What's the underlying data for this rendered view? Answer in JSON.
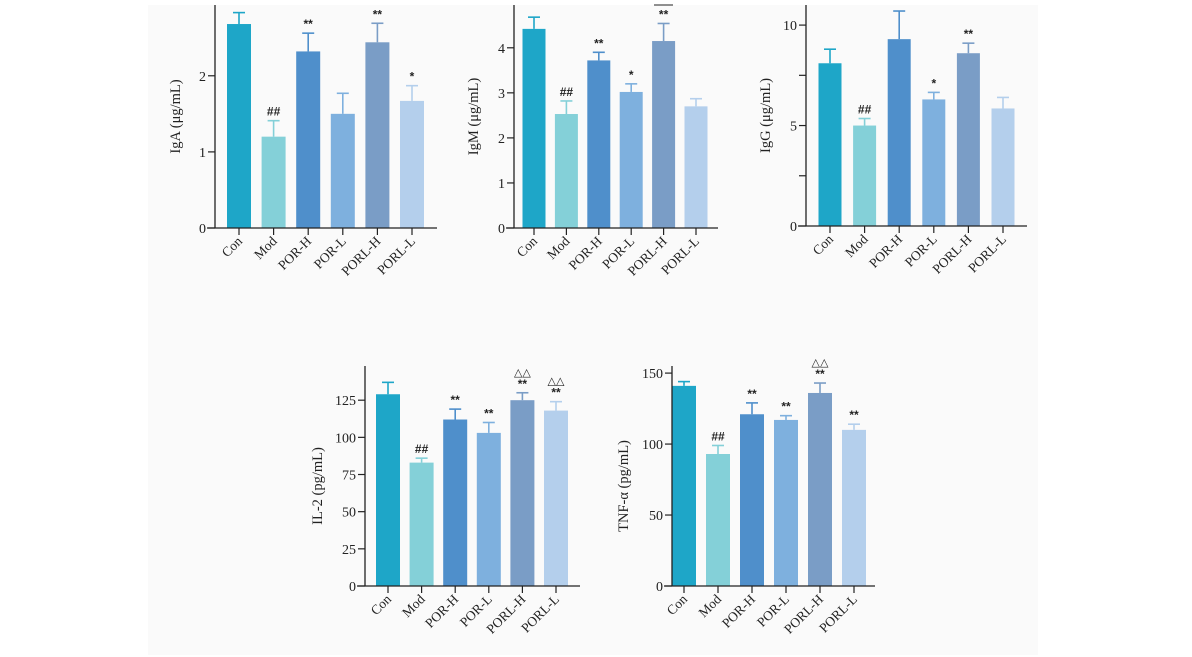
{
  "figure": {
    "categories": [
      "Con",
      "Mod",
      "POR-H",
      "POR-L",
      "PORL-H",
      "PORL-L"
    ],
    "colors": [
      "#1ea6c8",
      "#84d0d8",
      "#4f8fcb",
      "#7eb0de",
      "#7a9dc6",
      "#b4cfec"
    ]
  },
  "chart_data": [
    {
      "type": "bar",
      "title": "",
      "xlabel": "",
      "ylabel": "IgA (μg/mL)",
      "ylim": [
        0,
        2.93
      ],
      "yticks": [
        0,
        1,
        2
      ],
      "ytick_labels": [
        "0",
        "1",
        "2"
      ],
      "categories": [
        "Con",
        "Mod",
        "POR-H",
        "POR-L",
        "PORL-H",
        "PORL-L"
      ],
      "values": [
        2.68,
        1.2,
        2.32,
        1.5,
        2.44,
        1.67
      ],
      "error_upper": [
        2.83,
        1.41,
        2.56,
        1.77,
        2.69,
        1.87
      ],
      "annotations": [
        [],
        [
          "##"
        ],
        [
          "**"
        ],
        [],
        [
          "**"
        ],
        [
          "*"
        ]
      ],
      "grid": false
    },
    {
      "type": "bar",
      "title": "",
      "xlabel": "",
      "ylabel": "IgM (μg/mL)",
      "ylim": [
        0,
        4.95
      ],
      "yticks": [
        0,
        1,
        2,
        3,
        4
      ],
      "ytick_labels": [
        "0",
        "1",
        "2",
        "3",
        "4"
      ],
      "categories": [
        "Con",
        "Mod",
        "POR-H",
        "POR-L",
        "PORL-H",
        "PORL-L"
      ],
      "values": [
        4.42,
        2.53,
        3.72,
        3.02,
        4.15,
        2.7
      ],
      "error_upper": [
        4.68,
        2.82,
        3.9,
        3.2,
        4.54,
        2.87
      ],
      "annotations": [
        [],
        [
          "##"
        ],
        [
          "**"
        ],
        [
          "*"
        ],
        [
          "**"
        ],
        []
      ],
      "grid": false
    },
    {
      "type": "bar",
      "title": "",
      "xlabel": "",
      "ylabel": "IgG (μg/mL)",
      "ylim": [
        0,
        11
      ],
      "yticks": [
        0,
        2.5,
        5,
        7.5,
        10
      ],
      "ytick_labels": [
        "0",
        "",
        "5",
        "",
        "10"
      ],
      "categories": [
        "Con",
        "Mod",
        "POR-H",
        "POR-L",
        "PORL-H",
        "PORL-L"
      ],
      "values": [
        8.1,
        5.0,
        9.3,
        6.3,
        8.6,
        5.85
      ],
      "error_upper": [
        8.8,
        5.35,
        10.7,
        6.65,
        9.1,
        6.4
      ],
      "annotations": [
        [],
        [
          "##"
        ],
        [],
        [
          "*"
        ],
        [
          "**"
        ],
        []
      ],
      "grid": false
    },
    {
      "type": "bar",
      "title": "",
      "xlabel": "",
      "ylabel": "IL-2 (pg/mL)",
      "ylim": [
        0,
        148
      ],
      "yticks": [
        0,
        25,
        50,
        75,
        100,
        125
      ],
      "ytick_labels": [
        "0",
        "25",
        "50",
        "75",
        "100",
        "125"
      ],
      "categories": [
        "Con",
        "Mod",
        "POR-H",
        "POR-L",
        "PORL-H",
        "PORL-L"
      ],
      "values": [
        129,
        83,
        112,
        103,
        125,
        118
      ],
      "error_upper": [
        137,
        86,
        119,
        110,
        130,
        124
      ],
      "annotations": [
        [],
        [
          "##"
        ],
        [
          "**"
        ],
        [
          "**"
        ],
        [
          "**",
          "△△"
        ],
        [
          "**",
          "△△"
        ]
      ],
      "grid": false
    },
    {
      "type": "bar",
      "title": "",
      "xlabel": "",
      "ylabel": "TNF-α (pg/mL)",
      "ylim": [
        0,
        155
      ],
      "yticks": [
        0,
        50,
        100,
        150
      ],
      "ytick_labels": [
        "0",
        "50",
        "100",
        "150"
      ],
      "categories": [
        "Con",
        "Mod",
        "POR-H",
        "POR-L",
        "PORL-H",
        "PORL-L"
      ],
      "values": [
        141,
        93,
        121,
        117,
        136,
        110
      ],
      "error_upper": [
        144,
        99,
        129,
        120,
        143,
        114
      ],
      "annotations": [
        [],
        [
          "##"
        ],
        [
          "**"
        ],
        [
          "**"
        ],
        [
          "**",
          "△△"
        ],
        [
          "**"
        ]
      ],
      "grid": false
    }
  ]
}
